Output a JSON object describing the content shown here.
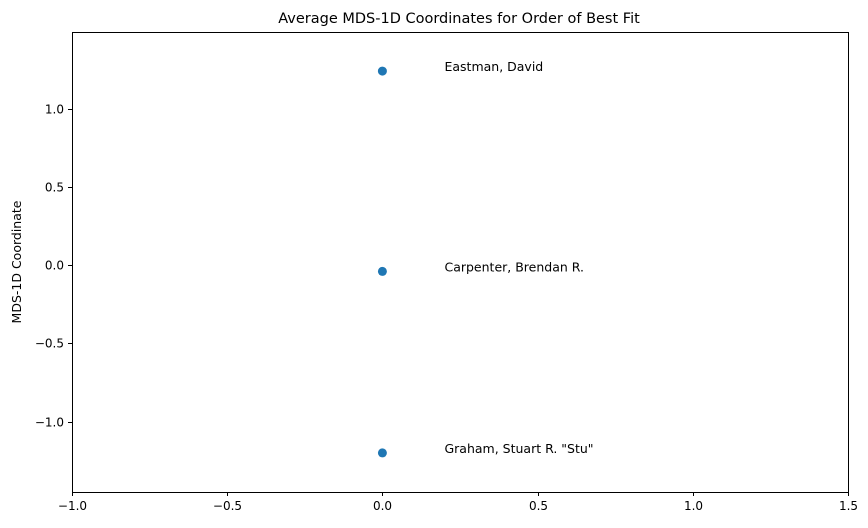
{
  "chart_data": {
    "type": "scatter",
    "title": "Average MDS-1D Coordinates for Order of Best Fit",
    "xlabel": "",
    "ylabel": "MDS-1D Coordinate",
    "xlim": [
      -1.0,
      1.5
    ],
    "ylim": [
      -1.45,
      1.49
    ],
    "x_ticks": [
      -1.0,
      -0.5,
      0.0,
      0.5,
      1.0,
      1.5
    ],
    "x_tick_labels": [
      "−1.0",
      "−0.5",
      "0.0",
      "0.5",
      "1.0",
      "1.5"
    ],
    "y_ticks": [
      1.0,
      0.5,
      0.0,
      -0.5,
      -1.0
    ],
    "y_tick_labels": [
      "1.0",
      "0.5",
      "0.0",
      "−0.5",
      "−1.0"
    ],
    "grid": false,
    "marker_color": "#1f77b4",
    "points": [
      {
        "x": 0.0,
        "y": 1.24,
        "label": "Eastman, David",
        "label_x": 0.2,
        "label_y": 1.24
      },
      {
        "x": 0.0,
        "y": -0.04,
        "label": "Carpenter, Brendan R.",
        "label_x": 0.2,
        "label_y": -0.04
      },
      {
        "x": 0.0,
        "y": -1.2,
        "label": "Graham, Stuart R. \"Stu\"",
        "label_x": 0.2,
        "label_y": -1.2
      }
    ]
  }
}
